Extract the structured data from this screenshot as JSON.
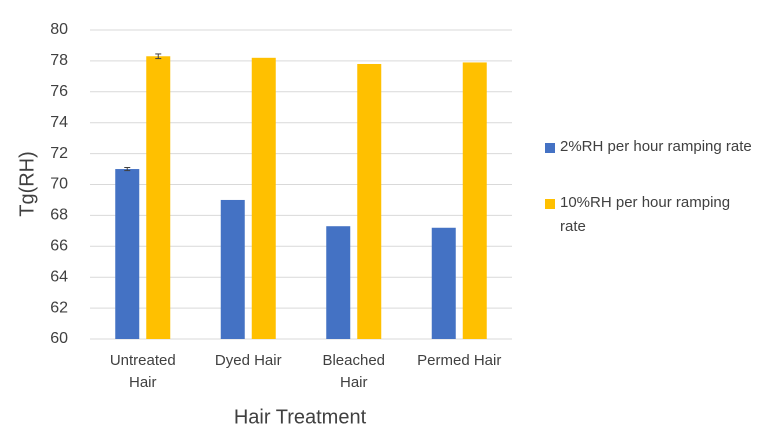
{
  "chart_data": {
    "type": "bar",
    "categories": [
      "Untreated Hair",
      "Dyed Hair",
      "Bleached Hair",
      "Permed Hair"
    ],
    "series": [
      {
        "name": "2%RH per hour ramping rate",
        "color": "#4472c4",
        "values": [
          71.0,
          69.0,
          67.3,
          67.2
        ],
        "errors": [
          0.1,
          null,
          null,
          null
        ]
      },
      {
        "name": "10%RH per hour ramping rate",
        "color": "#ffc000",
        "values": [
          78.3,
          78.2,
          77.8,
          77.9
        ],
        "errors": [
          0.15,
          null,
          null,
          null
        ]
      }
    ],
    "ylim": [
      60,
      80
    ],
    "yticks": [
      60,
      62,
      64,
      66,
      68,
      70,
      72,
      74,
      76,
      78,
      80
    ],
    "grid": true,
    "xlabel": "Hair Treatment",
    "ylabel": "Tg(RH)",
    "legend": "right"
  }
}
